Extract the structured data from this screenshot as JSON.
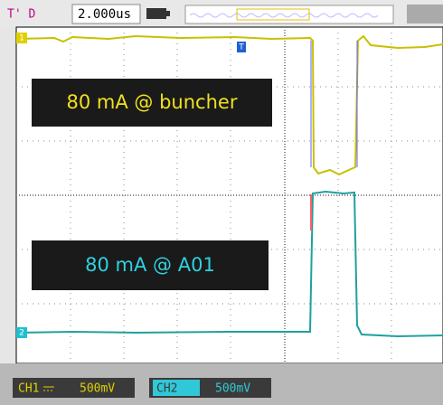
{
  "top_bar": {
    "trigger_mode": "T' D",
    "timebase": "2.000us"
  },
  "annotations": [
    "80 mA @ buncher",
    "80 mA @ A01"
  ],
  "channel_markers": {
    "ch1": "1",
    "ch2": "2",
    "trigger": "T"
  },
  "bottom_bar": {
    "ch1_label": "CH1",
    "ch1_scale": "500mV",
    "ch2_label": "CH2",
    "ch2_scale": "500mV"
  }
}
